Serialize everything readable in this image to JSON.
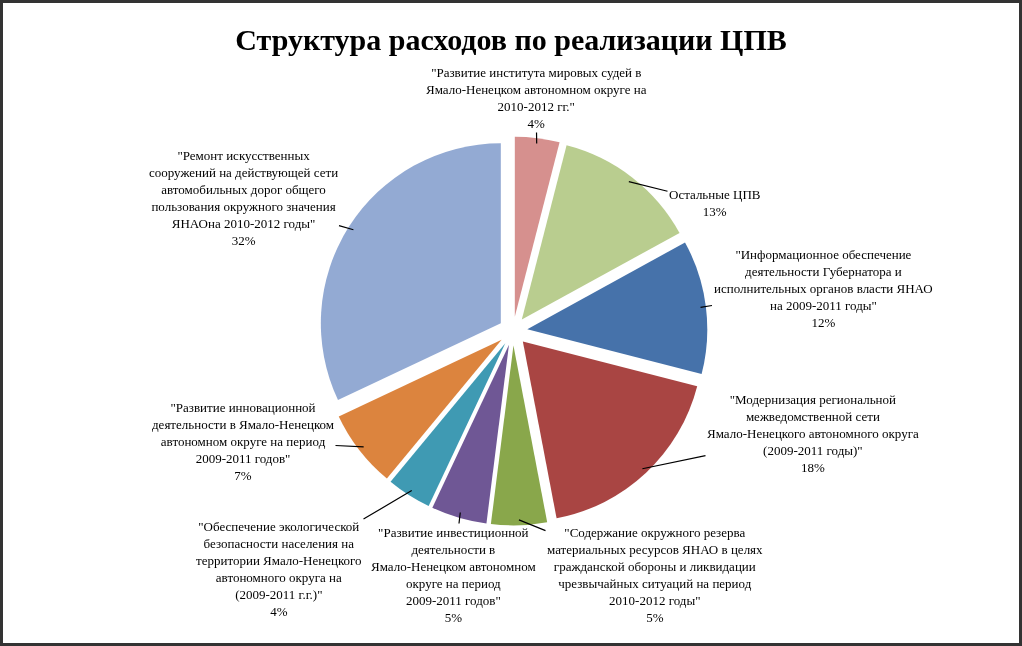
{
  "chart_data": {
    "type": "pie",
    "title": "Структура расходов по реализации ЦПВ",
    "categories": [
      "\"Развитие института мировых судей в Ямало-Ненецком автономном округе на 2010-2012 гг.\"",
      "Остальные ЦПВ",
      "\"Информационное обеспечение деятельности Губернатора и исполнительных органов власти ЯНАО на 2009-2011 годы\"",
      "\"Модернизация региональной межведомственной сети Ямало-Ненецкого автономного округа (2009-2011 годы)\"",
      "\"Содержание окружного резерва материальных ресурсов ЯНАО в целях гражданской обороны и ликвидации чрезвычайных ситуаций на период 2010-2012 годы\"",
      "\"Развитие инвестиционной деятельности в Ямало-Ненецком автономном округе на период 2009-2011 годов\"",
      "\"Обеспечение экологической безопасности населения на территории Ямало-Ненецкого автономного округа на (2009-2011 г.г.)\"",
      "\"Развитие инновационной деятельности в Ямало-Ненецком автономном округе на период 2009-2011 годов\"",
      "\"Ремонт искусственных сооружений на действующей сети автомобильных дорог общего пользования окружного значения ЯНАОна 2010-2012 годы\""
    ],
    "values": [
      4,
      13,
      12,
      18,
      5,
      5,
      4,
      7,
      32
    ],
    "colors": [
      "#d6908e",
      "#b9cd8f",
      "#4672aa",
      "#a94543",
      "#89a74b",
      "#6f5795",
      "#3f9ab3",
      "#dc843e",
      "#93aad3"
    ],
    "value_labels": [
      "4%",
      "13%",
      "12%",
      "18%",
      "5%",
      "5%",
      "4%",
      "7%",
      "32%"
    ]
  }
}
